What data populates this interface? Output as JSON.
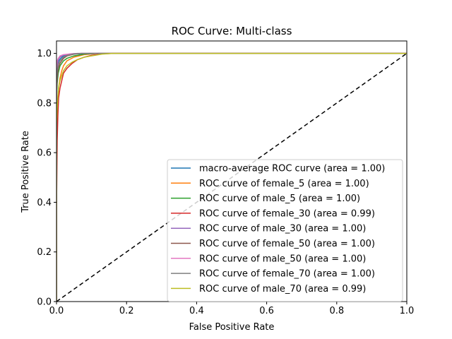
{
  "chart_data": {
    "type": "line",
    "title": "ROC Curve: Multi-class",
    "xlabel": "False Positive Rate",
    "ylabel": "True Positive Rate",
    "xlim": [
      0.0,
      1.0
    ],
    "ylim": [
      0.0,
      1.05
    ],
    "xticks": [
      0.0,
      0.2,
      0.4,
      0.6,
      0.8,
      1.0
    ],
    "yticks": [
      0.0,
      0.2,
      0.4,
      0.6,
      0.8,
      1.0
    ],
    "grid": false,
    "legend_position": "lower-right",
    "series": [
      {
        "name": "macro-average ROC curve (area = 1.00)",
        "color": "#1f77b4",
        "x": [
          0,
          0,
          0.003,
          0.006,
          0.012,
          0.02,
          0.03,
          0.045,
          0.06,
          0.08,
          0.1,
          1.0
        ],
        "y": [
          0,
          0.92,
          0.95,
          0.97,
          0.98,
          0.99,
          0.993,
          0.996,
          0.998,
          0.999,
          1.0,
          1.0
        ]
      },
      {
        "name": "ROC curve of female_5 (area = 1.00)",
        "color": "#ff7f0e",
        "x": [
          0,
          0,
          0.002,
          0.004,
          0.006,
          0.01,
          0.015,
          0.02,
          0.03,
          0.05,
          0.08,
          0.12,
          1.0
        ],
        "y": [
          0,
          0.62,
          0.72,
          0.8,
          0.86,
          0.9,
          0.93,
          0.95,
          0.97,
          0.985,
          0.995,
          1.0,
          1.0
        ]
      },
      {
        "name": "ROC curve of male_5 (area = 1.00)",
        "color": "#2ca02c",
        "x": [
          0,
          0,
          0.002,
          0.005,
          0.01,
          0.02,
          0.03,
          0.05,
          0.08,
          0.12,
          1.0
        ],
        "y": [
          0,
          0.82,
          0.88,
          0.92,
          0.95,
          0.97,
          0.98,
          0.99,
          0.997,
          1.0,
          1.0
        ]
      },
      {
        "name": "ROC curve of female_30 (area = 0.99)",
        "color": "#d62728",
        "x": [
          0,
          0,
          0.002,
          0.004,
          0.006,
          0.01,
          0.015,
          0.02,
          0.03,
          0.045,
          0.06,
          0.08,
          0.1,
          0.13,
          0.16,
          1.0
        ],
        "y": [
          0,
          0.37,
          0.65,
          0.75,
          0.82,
          0.86,
          0.89,
          0.92,
          0.94,
          0.96,
          0.975,
          0.985,
          0.992,
          0.998,
          1.0,
          1.0
        ]
      },
      {
        "name": "ROC curve of male_30 (area = 1.00)",
        "color": "#9467bd",
        "x": [
          0,
          0,
          0.002,
          0.005,
          0.01,
          0.02,
          0.04,
          0.06,
          1.0
        ],
        "y": [
          0,
          0.9,
          0.95,
          0.975,
          0.985,
          0.993,
          0.998,
          1.0,
          1.0
        ]
      },
      {
        "name": "ROC curve of female_50 (area = 1.00)",
        "color": "#8c564b",
        "x": [
          0,
          0,
          0.002,
          0.005,
          0.01,
          0.02,
          0.03,
          0.05,
          0.07,
          1.0
        ],
        "y": [
          0,
          0.85,
          0.9,
          0.94,
          0.96,
          0.98,
          0.99,
          0.997,
          1.0,
          1.0
        ]
      },
      {
        "name": "ROC curve of male_50 (area = 1.00)",
        "color": "#e377c2",
        "x": [
          0,
          0,
          0.002,
          0.005,
          0.01,
          0.02,
          0.04,
          0.07,
          1.0
        ],
        "y": [
          0,
          0.94,
          0.97,
          0.98,
          0.99,
          0.995,
          0.998,
          1.0,
          1.0
        ]
      },
      {
        "name": "ROC curve of female_70 (area = 1.00)",
        "color": "#7f7f7f",
        "x": [
          0,
          0,
          0.002,
          0.005,
          0.01,
          0.02,
          0.03,
          0.05,
          0.07,
          1.0
        ],
        "y": [
          0,
          0.88,
          0.93,
          0.955,
          0.97,
          0.985,
          0.992,
          0.998,
          1.0,
          1.0
        ]
      },
      {
        "name": "ROC curve of male_70 (area = 0.99)",
        "color": "#bcbd22",
        "x": [
          0,
          0,
          0.002,
          0.004,
          0.006,
          0.01,
          0.015,
          0.02,
          0.03,
          0.045,
          0.06,
          0.08,
          0.1,
          0.13,
          0.16,
          1.0
        ],
        "y": [
          0,
          0.72,
          0.78,
          0.83,
          0.86,
          0.89,
          0.91,
          0.93,
          0.95,
          0.965,
          0.975,
          0.985,
          0.99,
          0.997,
          1.0,
          1.0
        ]
      }
    ],
    "reference_line": {
      "x": [
        0,
        1
      ],
      "y": [
        0,
        1
      ],
      "color": "#000000",
      "style": "dashed"
    }
  }
}
